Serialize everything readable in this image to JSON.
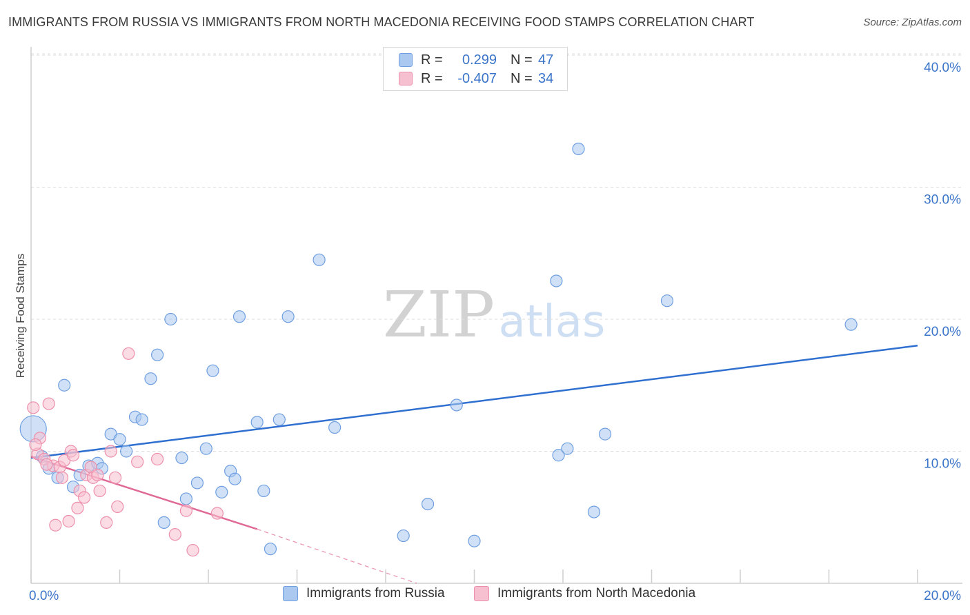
{
  "header": {
    "title": "IMMIGRANTS FROM RUSSIA VS IMMIGRANTS FROM NORTH MACEDONIA RECEIVING FOOD STAMPS CORRELATION CHART",
    "source": "Source: ZipAtlas.com"
  },
  "watermark": {
    "zip": "ZIP",
    "atlas": "atlas"
  },
  "legend_top": {
    "rows": [
      {
        "r_label": "R =",
        "r_value": "0.299",
        "n_label": "N =",
        "n_value": "47",
        "color": "#aac8f0",
        "stroke": "#6f9fe0"
      },
      {
        "r_label": "R =",
        "r_value": "-0.407",
        "n_label": "N =",
        "n_value": "34",
        "color": "#f7c0d0",
        "stroke": "#ec8fab"
      }
    ]
  },
  "legend_bottom": {
    "items": [
      {
        "label": "Immigrants from Russia",
        "color": "#aac8f0",
        "stroke": "#6f9fe0"
      },
      {
        "label": "Immigrants from North Macedonia",
        "color": "#f7c0d0",
        "stroke": "#ec8fab"
      }
    ]
  },
  "chart_data": {
    "type": "scatter",
    "title": "IMMIGRANTS FROM RUSSIA VS IMMIGRANTS FROM NORTH MACEDONIA RECEIVING FOOD STAMPS CORRELATION CHART",
    "xlabel": "",
    "ylabel": "Receiving Food Stamps",
    "xlim": [
      0,
      20
    ],
    "ylim": [
      0,
      40
    ],
    "x_tick_labels": [
      "0.0%",
      "20.0%"
    ],
    "y_tick_labels": [
      "10.0%",
      "20.0%",
      "30.0%",
      "40.0%"
    ],
    "y_ticks": [
      10,
      20,
      30,
      40
    ],
    "grid": true,
    "series": [
      {
        "name": "Immigrants from Russia",
        "color": "#6f9fe0",
        "fill": "#aac8f0",
        "trendline": {
          "x": [
            0,
            20
          ],
          "y": [
            9.5,
            18.0
          ],
          "color": "#2f6fcf"
        },
        "points": [
          {
            "x": 0.05,
            "y": 11.7,
            "big": true
          },
          {
            "x": 0.25,
            "y": 9.6
          },
          {
            "x": 0.4,
            "y": 8.7
          },
          {
            "x": 0.6,
            "y": 8.0
          },
          {
            "x": 0.75,
            "y": 15.0
          },
          {
            "x": 0.95,
            "y": 7.3
          },
          {
            "x": 1.1,
            "y": 8.2
          },
          {
            "x": 1.3,
            "y": 8.9
          },
          {
            "x": 1.5,
            "y": 9.1
          },
          {
            "x": 1.6,
            "y": 8.7
          },
          {
            "x": 1.8,
            "y": 11.3
          },
          {
            "x": 2.0,
            "y": 10.9
          },
          {
            "x": 2.15,
            "y": 10.0
          },
          {
            "x": 2.35,
            "y": 12.6
          },
          {
            "x": 2.5,
            "y": 12.4
          },
          {
            "x": 2.7,
            "y": 15.5
          },
          {
            "x": 2.85,
            "y": 17.3
          },
          {
            "x": 3.0,
            "y": 4.6
          },
          {
            "x": 3.15,
            "y": 20.0
          },
          {
            "x": 3.4,
            "y": 9.5
          },
          {
            "x": 3.5,
            "y": 6.4
          },
          {
            "x": 3.75,
            "y": 7.6
          },
          {
            "x": 3.95,
            "y": 10.2
          },
          {
            "x": 4.1,
            "y": 16.1
          },
          {
            "x": 4.3,
            "y": 6.9
          },
          {
            "x": 4.5,
            "y": 8.5
          },
          {
            "x": 4.6,
            "y": 7.9
          },
          {
            "x": 4.7,
            "y": 20.2
          },
          {
            "x": 5.1,
            "y": 12.2
          },
          {
            "x": 5.25,
            "y": 7.0
          },
          {
            "x": 5.4,
            "y": 2.6
          },
          {
            "x": 5.6,
            "y": 12.4
          },
          {
            "x": 5.8,
            "y": 20.2
          },
          {
            "x": 6.5,
            "y": 24.5
          },
          {
            "x": 6.85,
            "y": 11.8
          },
          {
            "x": 8.4,
            "y": 3.6
          },
          {
            "x": 8.95,
            "y": 6.0
          },
          {
            "x": 9.6,
            "y": 13.5
          },
          {
            "x": 10.0,
            "y": 3.2
          },
          {
            "x": 11.85,
            "y": 22.9
          },
          {
            "x": 11.9,
            "y": 9.7
          },
          {
            "x": 12.1,
            "y": 10.2
          },
          {
            "x": 12.35,
            "y": 32.9
          },
          {
            "x": 12.7,
            "y": 5.4
          },
          {
            "x": 12.95,
            "y": 11.3
          },
          {
            "x": 14.35,
            "y": 21.4
          },
          {
            "x": 18.5,
            "y": 19.6
          }
        ]
      },
      {
        "name": "Immigrants from North Macedonia",
        "color": "#ec8fab",
        "fill": "#f7c0d0",
        "trendline": {
          "x": [
            0,
            5.1
          ],
          "y": [
            9.6,
            4.1
          ],
          "dashed_to": [
            8.7,
            0
          ],
          "color": "#e06a96"
        },
        "points": [
          {
            "x": 0.05,
            "y": 13.3
          },
          {
            "x": 0.15,
            "y": 9.8
          },
          {
            "x": 0.2,
            "y": 11.0
          },
          {
            "x": 0.3,
            "y": 9.4
          },
          {
            "x": 0.4,
            "y": 13.6
          },
          {
            "x": 0.5,
            "y": 8.9
          },
          {
            "x": 0.55,
            "y": 4.4
          },
          {
            "x": 0.65,
            "y": 8.8
          },
          {
            "x": 0.7,
            "y": 8.0
          },
          {
            "x": 0.75,
            "y": 9.3
          },
          {
            "x": 0.85,
            "y": 4.7
          },
          {
            "x": 0.9,
            "y": 10.0
          },
          {
            "x": 0.95,
            "y": 9.7
          },
          {
            "x": 1.05,
            "y": 5.7
          },
          {
            "x": 1.1,
            "y": 7.0
          },
          {
            "x": 1.2,
            "y": 6.5
          },
          {
            "x": 1.25,
            "y": 8.2
          },
          {
            "x": 1.35,
            "y": 8.8
          },
          {
            "x": 1.4,
            "y": 8.0
          },
          {
            "x": 1.5,
            "y": 8.2
          },
          {
            "x": 1.55,
            "y": 7.0
          },
          {
            "x": 1.7,
            "y": 4.6
          },
          {
            "x": 1.8,
            "y": 10.0
          },
          {
            "x": 1.9,
            "y": 8.0
          },
          {
            "x": 1.95,
            "y": 5.8
          },
          {
            "x": 2.2,
            "y": 17.4
          },
          {
            "x": 2.4,
            "y": 9.2
          },
          {
            "x": 2.85,
            "y": 9.4
          },
          {
            "x": 3.25,
            "y": 3.7
          },
          {
            "x": 3.5,
            "y": 5.5
          },
          {
            "x": 3.65,
            "y": 2.5
          },
          {
            "x": 4.2,
            "y": 5.3
          },
          {
            "x": 0.1,
            "y": 10.5
          },
          {
            "x": 0.35,
            "y": 9.0
          }
        ]
      }
    ]
  }
}
